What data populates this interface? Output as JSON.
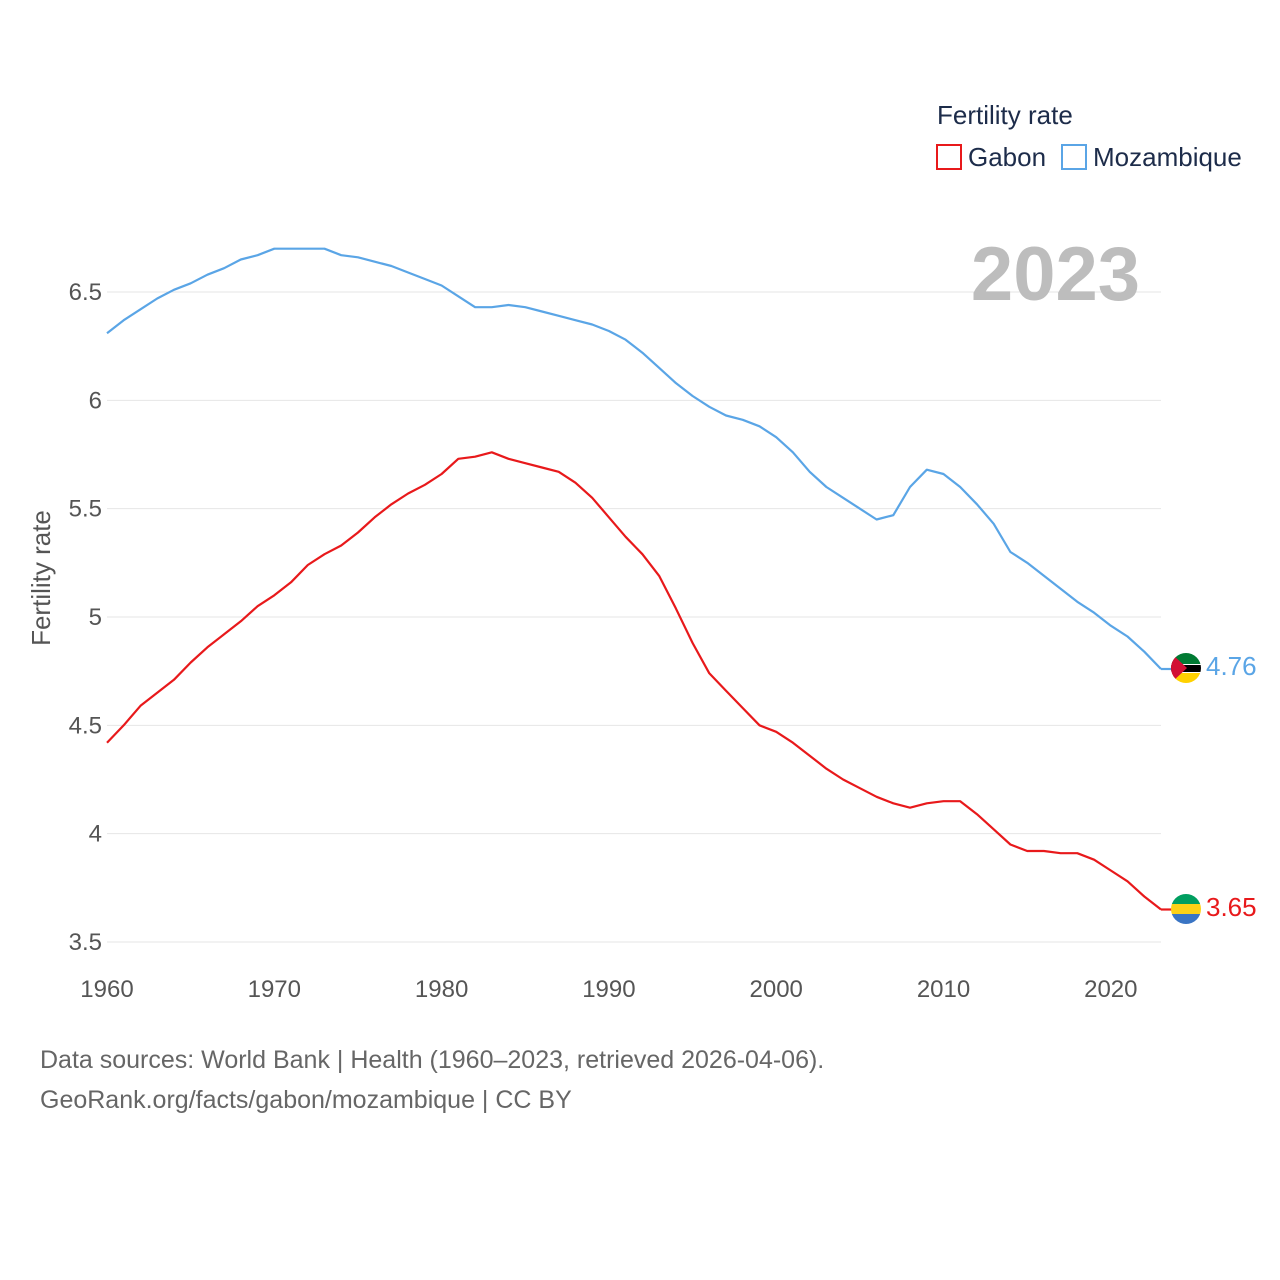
{
  "chart_data": {
    "type": "line",
    "title": "Fertility rate",
    "ylabel": "Fertility rate",
    "xlabel": "",
    "current_year": "2023",
    "xlim": [
      1960,
      2023
    ],
    "ylim": [
      3.4,
      6.85
    ],
    "x_ticks": [
      1960,
      1970,
      1980,
      1990,
      2000,
      2010,
      2020
    ],
    "y_ticks": [
      3.5,
      4,
      4.5,
      5,
      5.5,
      6,
      6.5
    ],
    "y_tick_labels": [
      "3.5",
      "4",
      "4.5",
      "5",
      "5.5",
      "6",
      "6.5"
    ],
    "x_tick_labels": [
      "1960",
      "1970",
      "1980",
      "1990",
      "2000",
      "2010",
      "2020"
    ],
    "legend_title": "Fertility rate",
    "series": [
      {
        "name": "Gabon",
        "color": "#e8191b",
        "end_label": "3.65",
        "flag": [
          "#3a75c4",
          "#fcd116",
          "#009e60"
        ],
        "x": [
          1960,
          1961,
          1962,
          1963,
          1964,
          1965,
          1966,
          1967,
          1968,
          1969,
          1970,
          1971,
          1972,
          1973,
          1974,
          1975,
          1976,
          1977,
          1978,
          1979,
          1980,
          1981,
          1982,
          1983,
          1984,
          1985,
          1986,
          1987,
          1988,
          1989,
          1990,
          1991,
          1992,
          1993,
          1994,
          1995,
          1996,
          1997,
          1998,
          1999,
          2000,
          2001,
          2002,
          2003,
          2004,
          2005,
          2006,
          2007,
          2008,
          2009,
          2010,
          2011,
          2012,
          2013,
          2014,
          2015,
          2016,
          2017,
          2018,
          2019,
          2020,
          2021,
          2022,
          2023
        ],
        "values": [
          4.42,
          4.5,
          4.59,
          4.65,
          4.71,
          4.79,
          4.86,
          4.92,
          4.98,
          5.05,
          5.1,
          5.16,
          5.24,
          5.29,
          5.33,
          5.39,
          5.46,
          5.52,
          5.57,
          5.61,
          5.66,
          5.73,
          5.74,
          5.76,
          5.73,
          5.71,
          5.69,
          5.67,
          5.62,
          5.55,
          5.46,
          5.37,
          5.29,
          5.19,
          5.04,
          4.88,
          4.74,
          4.66,
          4.58,
          4.5,
          4.47,
          4.42,
          4.36,
          4.3,
          4.25,
          4.21,
          4.17,
          4.14,
          4.12,
          4.14,
          4.15,
          4.15,
          4.09,
          4.02,
          3.95,
          3.92,
          3.92,
          3.91,
          3.91,
          3.88,
          3.83,
          3.78,
          3.71,
          3.65
        ]
      },
      {
        "name": "Mozambique",
        "color": "#5aa5e6",
        "end_label": "4.76",
        "flag": [
          "#007a33",
          "#000000",
          "#ffd100",
          "#d21034"
        ],
        "x": [
          1960,
          1961,
          1962,
          1963,
          1964,
          1965,
          1966,
          1967,
          1968,
          1969,
          1970,
          1971,
          1972,
          1973,
          1974,
          1975,
          1976,
          1977,
          1978,
          1979,
          1980,
          1981,
          1982,
          1983,
          1984,
          1985,
          1986,
          1987,
          1988,
          1989,
          1990,
          1991,
          1992,
          1993,
          1994,
          1995,
          1996,
          1997,
          1998,
          1999,
          2000,
          2001,
          2002,
          2003,
          2004,
          2005,
          2006,
          2007,
          2008,
          2009,
          2010,
          2011,
          2012,
          2013,
          2014,
          2015,
          2016,
          2017,
          2018,
          2019,
          2020,
          2021,
          2022,
          2023
        ],
        "values": [
          6.31,
          6.37,
          6.42,
          6.47,
          6.51,
          6.54,
          6.58,
          6.61,
          6.65,
          6.67,
          6.7,
          6.7,
          6.7,
          6.7,
          6.67,
          6.66,
          6.64,
          6.62,
          6.59,
          6.56,
          6.53,
          6.48,
          6.43,
          6.43,
          6.44,
          6.43,
          6.41,
          6.39,
          6.37,
          6.35,
          6.32,
          6.28,
          6.22,
          6.15,
          6.08,
          6.02,
          5.97,
          5.93,
          5.91,
          5.88,
          5.83,
          5.76,
          5.67,
          5.6,
          5.55,
          5.5,
          5.45,
          5.47,
          5.6,
          5.68,
          5.66,
          5.6,
          5.52,
          5.43,
          5.3,
          5.25,
          5.19,
          5.13,
          5.07,
          5.02,
          4.96,
          4.91,
          4.84,
          4.76
        ]
      }
    ]
  },
  "footer": {
    "line1": "Data sources: World Bank | Health (1960–2023, retrieved 2026-04-06).",
    "line2": "GeoRank.org/facts/gabon/mozambique | CC BY"
  }
}
